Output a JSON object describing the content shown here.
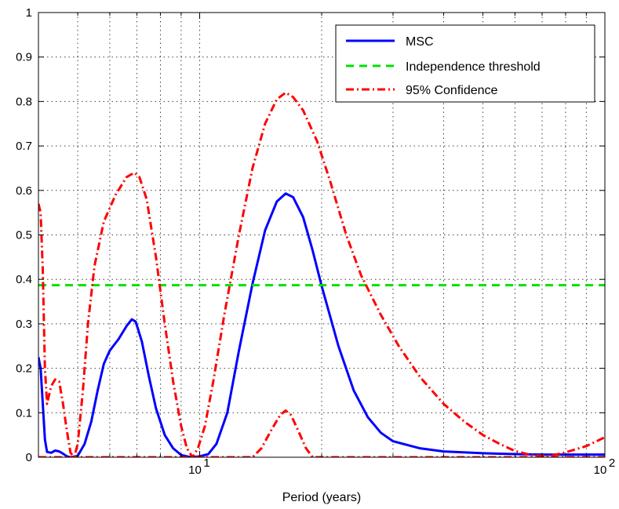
{
  "chart_data": {
    "type": "line",
    "title": "",
    "xlabel": "Period (years)",
    "ylabel": "",
    "x_scale": "log",
    "xlim": [
      4,
      100
    ],
    "ylim": [
      0,
      1
    ],
    "grid": true,
    "legend_position": "top-right",
    "x_ticks": [
      {
        "value": 10,
        "base": "10",
        "exp": "1"
      },
      {
        "value": 100,
        "base": "10",
        "exp": "2"
      }
    ],
    "x_minor_grid": [
      5,
      6,
      7,
      8,
      9,
      20,
      30,
      40,
      50,
      60,
      70,
      80,
      90
    ],
    "y_ticks": [
      "0",
      "0.1",
      "0.2",
      "0.3",
      "0.4",
      "0.5",
      "0.6",
      "0.7",
      "0.8",
      "0.9",
      "1"
    ],
    "y_tick_values": [
      0,
      0.1,
      0.2,
      0.3,
      0.4,
      0.5,
      0.6,
      0.7,
      0.8,
      0.9,
      1
    ],
    "series": [
      {
        "name": "MSC",
        "color": "#0000ff",
        "style": "solid",
        "points": [
          [
            4.0,
            0.225
          ],
          [
            4.05,
            0.2
          ],
          [
            4.1,
            0.12
          ],
          [
            4.15,
            0.04
          ],
          [
            4.2,
            0.012
          ],
          [
            4.3,
            0.01
          ],
          [
            4.4,
            0.015
          ],
          [
            4.5,
            0.013
          ],
          [
            4.6,
            0.008
          ],
          [
            4.7,
            0.002
          ],
          [
            4.8,
            0.0
          ],
          [
            5.0,
            0.003
          ],
          [
            5.2,
            0.03
          ],
          [
            5.4,
            0.08
          ],
          [
            5.6,
            0.15
          ],
          [
            5.8,
            0.21
          ],
          [
            6.0,
            0.24
          ],
          [
            6.3,
            0.265
          ],
          [
            6.6,
            0.295
          ],
          [
            6.8,
            0.31
          ],
          [
            6.95,
            0.305
          ],
          [
            7.2,
            0.26
          ],
          [
            7.5,
            0.18
          ],
          [
            7.8,
            0.11
          ],
          [
            8.2,
            0.05
          ],
          [
            8.6,
            0.02
          ],
          [
            9.0,
            0.005
          ],
          [
            9.5,
            0.0
          ],
          [
            10.0,
            0.002
          ],
          [
            10.5,
            0.007
          ],
          [
            11.0,
            0.03
          ],
          [
            11.7,
            0.1
          ],
          [
            12.5,
            0.24
          ],
          [
            13.5,
            0.39
          ],
          [
            14.5,
            0.51
          ],
          [
            15.5,
            0.575
          ],
          [
            16.3,
            0.593
          ],
          [
            17.0,
            0.585
          ],
          [
            18.0,
            0.54
          ],
          [
            19.0,
            0.465
          ],
          [
            20.0,
            0.385
          ],
          [
            22.0,
            0.25
          ],
          [
            24.0,
            0.15
          ],
          [
            26.0,
            0.09
          ],
          [
            28.0,
            0.055
          ],
          [
            30.0,
            0.036
          ],
          [
            35.0,
            0.02
          ],
          [
            40.0,
            0.013
          ],
          [
            50.0,
            0.009
          ],
          [
            60.0,
            0.007
          ],
          [
            70.0,
            0.006
          ],
          [
            80.0,
            0.006
          ],
          [
            100.0,
            0.006
          ]
        ]
      },
      {
        "name": "Independence threshold",
        "color": "#00e000",
        "style": "dashed",
        "points": [
          [
            4.0,
            0.387
          ],
          [
            100.0,
            0.387
          ]
        ]
      },
      {
        "name": "95% Confidence",
        "color": "#ff0000",
        "style": "dashdot",
        "points": [
          [
            4.0,
            0.57
          ],
          [
            4.05,
            0.55
          ],
          [
            4.1,
            0.42
          ],
          [
            4.15,
            0.2
          ],
          [
            4.2,
            0.12
          ],
          [
            4.3,
            0.16
          ],
          [
            4.4,
            0.175
          ],
          [
            4.5,
            0.17
          ],
          [
            4.6,
            0.12
          ],
          [
            4.7,
            0.06
          ],
          [
            4.8,
            0.01
          ],
          [
            4.9,
            0.0
          ],
          [
            5.0,
            0.03
          ],
          [
            5.15,
            0.15
          ],
          [
            5.3,
            0.3
          ],
          [
            5.5,
            0.43
          ],
          [
            5.8,
            0.53
          ],
          [
            6.2,
            0.59
          ],
          [
            6.6,
            0.63
          ],
          [
            6.9,
            0.64
          ],
          [
            7.1,
            0.63
          ],
          [
            7.4,
            0.58
          ],
          [
            7.8,
            0.45
          ],
          [
            8.2,
            0.3
          ],
          [
            8.6,
            0.17
          ],
          [
            9.0,
            0.07
          ],
          [
            9.3,
            0.02
          ],
          [
            9.6,
            0.0
          ],
          [
            9.9,
            0.02
          ],
          [
            10.3,
            0.07
          ],
          [
            10.8,
            0.17
          ],
          [
            11.5,
            0.32
          ],
          [
            12.5,
            0.5
          ],
          [
            13.5,
            0.65
          ],
          [
            14.5,
            0.75
          ],
          [
            15.5,
            0.805
          ],
          [
            16.3,
            0.82
          ],
          [
            17.0,
            0.81
          ],
          [
            18.0,
            0.78
          ],
          [
            19.5,
            0.71
          ],
          [
            21.0,
            0.62
          ],
          [
            23.0,
            0.5
          ],
          [
            25.0,
            0.41
          ],
          [
            28.0,
            0.32
          ],
          [
            31.0,
            0.25
          ],
          [
            35.0,
            0.18
          ],
          [
            40.0,
            0.12
          ],
          [
            45.0,
            0.08
          ],
          [
            50.0,
            0.05
          ],
          [
            55.0,
            0.03
          ],
          [
            60.0,
            0.014
          ],
          [
            65.0,
            0.006
          ],
          [
            70.0,
            0.003
          ],
          [
            75.0,
            0.005
          ],
          [
            80.0,
            0.011
          ],
          [
            90.0,
            0.025
          ],
          [
            100.0,
            0.045
          ]
        ]
      },
      {
        "name": "",
        "color": "#ff0000",
        "style": "dashdot",
        "points": [
          [
            4.0,
            0.0
          ],
          [
            13.5,
            0.0
          ],
          [
            14.2,
            0.02
          ],
          [
            15.0,
            0.06
          ],
          [
            15.8,
            0.095
          ],
          [
            16.3,
            0.105
          ],
          [
            16.8,
            0.095
          ],
          [
            17.5,
            0.06
          ],
          [
            18.3,
            0.02
          ],
          [
            19.0,
            0.0
          ],
          [
            100.0,
            0.0
          ]
        ]
      }
    ]
  }
}
